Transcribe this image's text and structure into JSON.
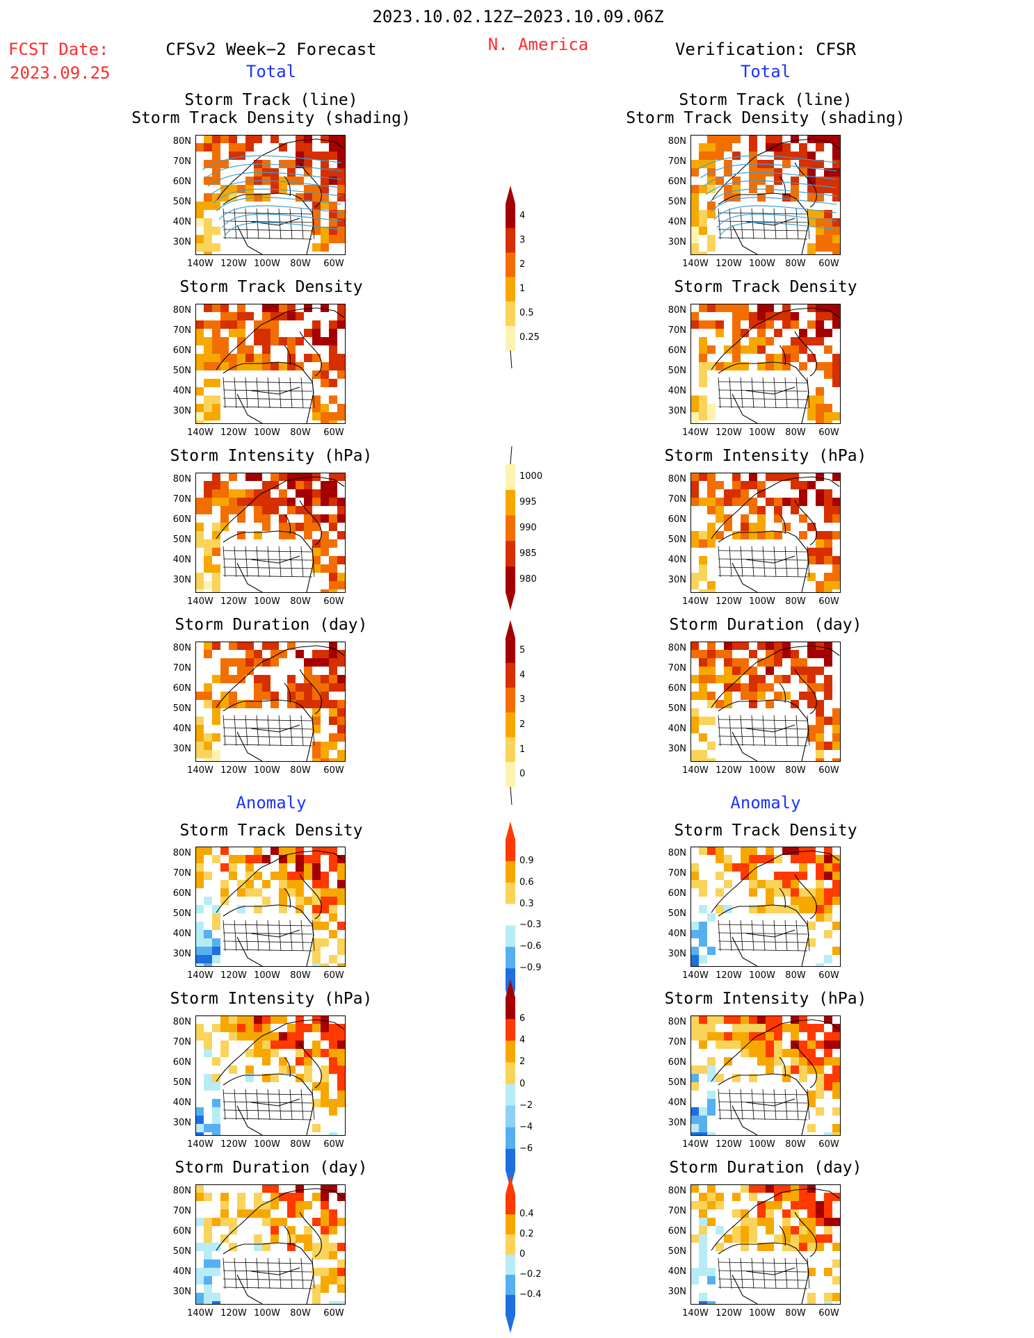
{
  "header": {
    "date_range": "2023.10.02.12Z−2023.10.09.06Z",
    "region": "N. America",
    "fcst_label": "FCST Date:",
    "fcst_date": "2023.09.25",
    "left_title": "CFSv2 Week−2 Forecast",
    "right_title": "Verification: CFSR",
    "left_total": "Total",
    "right_total": "Total"
  },
  "sections": {
    "anomaly_left": "Anomaly",
    "anomaly_right": "Anomaly"
  },
  "panel_titles": {
    "track_line": "Storm Track (line)",
    "track_shading": "Storm Track Density (shading)",
    "density": "Storm Track Density",
    "intensity": "Storm Intensity (hPa)",
    "duration": "Storm Duration (day)"
  },
  "axes": {
    "lat_labels": [
      "80N",
      "70N",
      "60N",
      "50N",
      "40N",
      "30N"
    ],
    "lon_labels": [
      "140W",
      "120W",
      "100W",
      "80W",
      "60W"
    ]
  },
  "colorbars": {
    "density_total": {
      "labels": [
        "4",
        "3",
        "2",
        "1",
        "0.5",
        "0.25"
      ],
      "colors": [
        "#a50000",
        "#d62f00",
        "#f26e00",
        "#f7a800",
        "#f9d35a",
        "#fdf3b0"
      ]
    },
    "intensity_total": {
      "labels": [
        "1000",
        "995",
        "990",
        "985",
        "980"
      ],
      "colors": [
        "#fdf3b0",
        "#f7a800",
        "#f26e00",
        "#d62f00",
        "#a50000"
      ]
    },
    "duration_total": {
      "labels": [
        "5",
        "4",
        "3",
        "2",
        "1",
        "0"
      ],
      "colors": [
        "#a50000",
        "#d62f00",
        "#f26e00",
        "#f7a800",
        "#f9d35a",
        "#fdf3b0"
      ]
    },
    "density_anom": {
      "labels": [
        "0.9",
        "0.6",
        "0.3",
        "−0.3",
        "−0.6",
        "−0.9"
      ],
      "colors": [
        "#ff3a00",
        "#f7a800",
        "#f9d35a",
        "#ffffff",
        "#b7ecf7",
        "#56b0f0",
        "#1f6fe0"
      ]
    },
    "intensity_anom": {
      "labels": [
        "6",
        "4",
        "2",
        "0",
        "−2",
        "−4",
        "−6"
      ],
      "colors": [
        "#a50000",
        "#ff3a00",
        "#f7a800",
        "#f9d35a",
        "#b7ecf7",
        "#8fd0f5",
        "#56b0f0",
        "#1f6fe0"
      ]
    },
    "duration_anom": {
      "labels": [
        "0.4",
        "0.2",
        "0",
        "−0.2",
        "−0.4"
      ],
      "colors": [
        "#ff3a00",
        "#f7a800",
        "#f9d35a",
        "#b7ecf7",
        "#56b0f0",
        "#1f6fe0"
      ]
    }
  }
}
